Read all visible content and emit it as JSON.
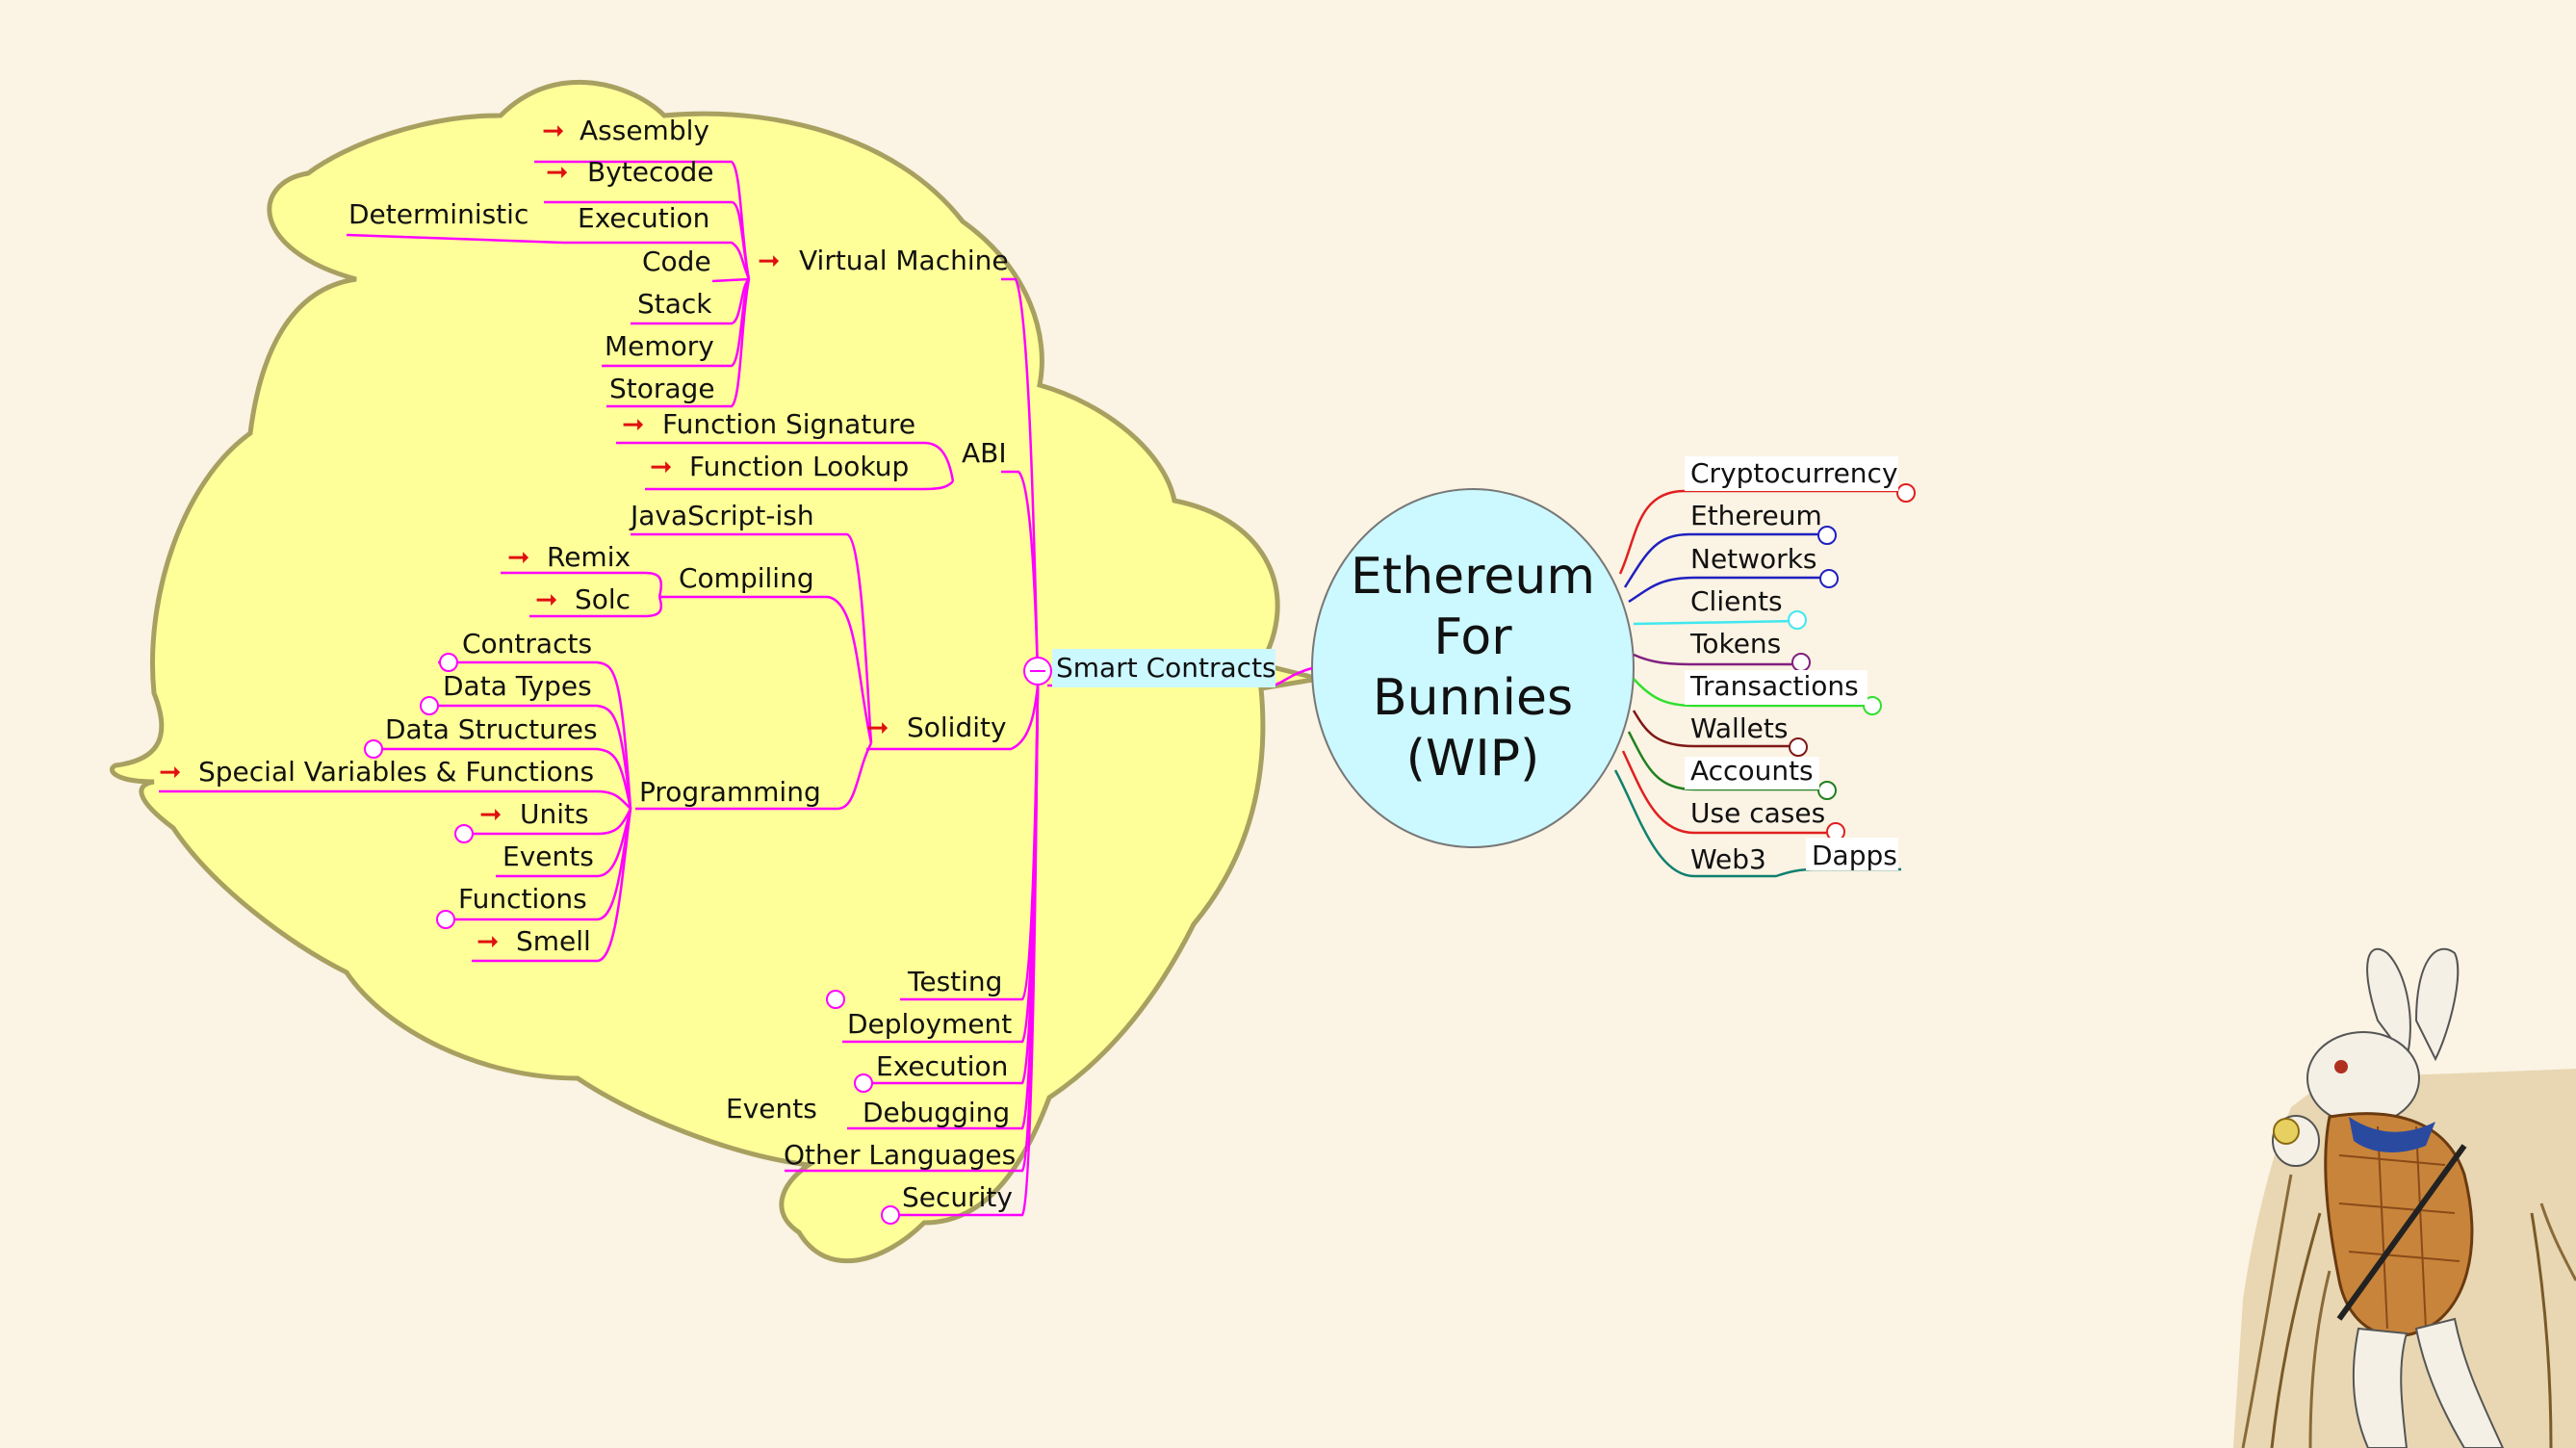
{
  "root": {
    "lines": [
      "Ethereum",
      "For",
      "Bunnies",
      "(WIP)"
    ]
  },
  "colors": {
    "background": "#fbf3e3",
    "cloud_fill": "#ffff99",
    "cloud_stroke": "#a8a060",
    "root_fill": "#ccf8ff",
    "branch_magenta": "#ff00ff",
    "link_arrow": "#e01010"
  },
  "left": {
    "smart_contracts": "Smart Contracts",
    "virtual_machine": {
      "label": "Virtual Machine",
      "children": [
        "Assembly",
        "Bytecode",
        "Execution",
        "Code",
        "Stack",
        "Memory",
        "Storage"
      ],
      "execution_child": "Deterministic"
    },
    "abi": {
      "label": "ABI",
      "children": [
        "Function Signature",
        "Function Lookup"
      ]
    },
    "solidity": {
      "label": "Solidity",
      "javascript": "JavaScript-ish",
      "compiling": {
        "label": "Compiling",
        "children": [
          "Remix",
          "Solc"
        ]
      },
      "programming": {
        "label": "Programming",
        "children": [
          "Contracts",
          "Data Types",
          "Data Structures",
          "Special Variables & Functions",
          "Units",
          "Events",
          "Functions",
          "Smell"
        ]
      }
    },
    "others": [
      "Testing",
      "Deployment",
      "Execution",
      "Debugging",
      "Other Languages",
      "Security"
    ],
    "debugging_child": "Events"
  },
  "right": {
    "items": [
      "Cryptocurrency",
      "Ethereum",
      "Networks",
      "Clients",
      "Tokens",
      "Transactions",
      "Wallets",
      "Accounts",
      "Use cases",
      "Web3"
    ],
    "web3_child": "Dapps"
  },
  "illustration": {
    "subject": "white-rabbit-with-pocket-watch"
  }
}
